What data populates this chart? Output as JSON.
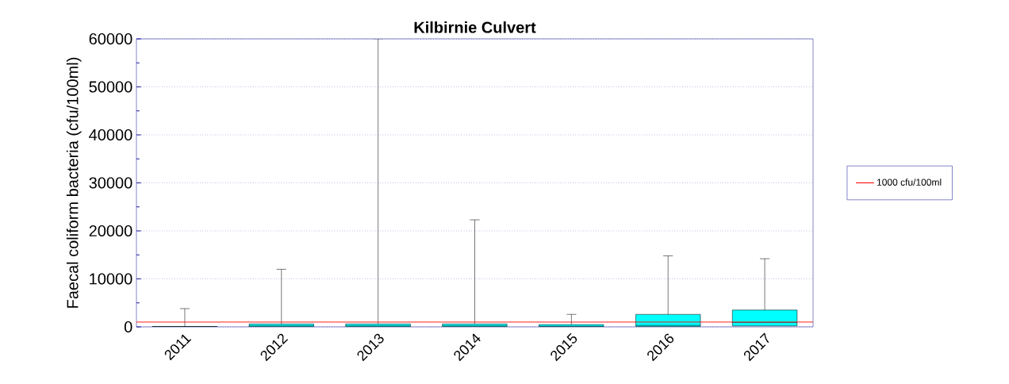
{
  "chart_data": {
    "type": "box",
    "title": "Kilbirnie Culvert",
    "ylabel": "Faecal coliform bacteria (cfu/100ml)",
    "categories": [
      "2011",
      "2012",
      "2013",
      "2014",
      "2015",
      "2016",
      "2017"
    ],
    "color": "#00ffff",
    "boxes": [
      {
        "q1": 0,
        "median": 50,
        "q3": 100,
        "high": 3800
      },
      {
        "q1": 50,
        "median": 200,
        "q3": 600,
        "high": 12000
      },
      {
        "q1": 50,
        "median": 200,
        "q3": 600,
        "high": 60000
      },
      {
        "q1": 50,
        "median": 200,
        "q3": 600,
        "high": 22300
      },
      {
        "q1": 50,
        "median": 150,
        "q3": 500,
        "high": 2600
      },
      {
        "q1": 100,
        "median": 300,
        "q3": 2600,
        "high": 14800
      },
      {
        "q1": 200,
        "median": 900,
        "q3": 3500,
        "high": 14200
      }
    ],
    "ylim": [
      0,
      60000
    ],
    "yticks": [
      0,
      10000,
      20000,
      30000,
      40000,
      50000,
      60000
    ],
    "grid": "y",
    "legend": "right",
    "ref_lines": [
      {
        "axis": "y",
        "value": 1000,
        "label": "1000 cfu/100ml",
        "color": "#ff0000"
      }
    ]
  }
}
